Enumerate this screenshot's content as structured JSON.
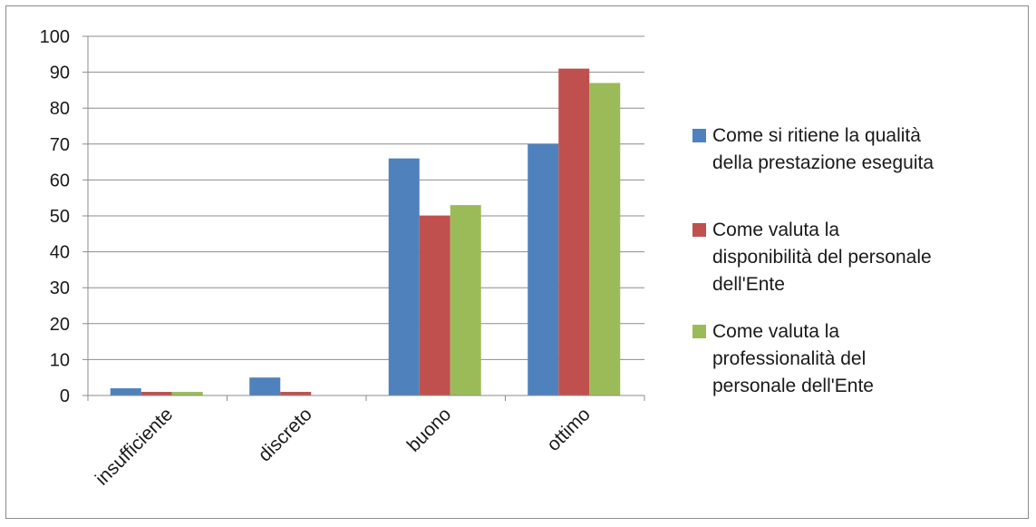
{
  "chart_data": {
    "type": "bar",
    "title": "",
    "xlabel": "",
    "ylabel": "",
    "categories": [
      "insufficiente",
      "discreto",
      "buono",
      "ottimo"
    ],
    "yticks": [
      "0",
      "10",
      "20",
      "30",
      "40",
      "50",
      "60",
      "70",
      "80",
      "90",
      "100"
    ],
    "ylim": [
      0,
      100
    ],
    "grid": true,
    "legend_position": "right",
    "series": [
      {
        "name": "Come si ritiene la qualità della prestazione eseguita",
        "name_lines": [
          "Come si ritiene la qualità",
          "della prestazione eseguita"
        ],
        "color": "#4f81bd",
        "values": [
          2,
          5,
          66,
          70
        ]
      },
      {
        "name": "Come valuta la disponibilità del personale dell'Ente",
        "name_lines": [
          "Come valuta la",
          "disponibilità del personale",
          "dell'Ente"
        ],
        "color": "#c0504d",
        "values": [
          1,
          1,
          50,
          91
        ]
      },
      {
        "name": "Come valuta la professionalità del personale dell'Ente",
        "name_lines": [
          "Come valuta la",
          "professionalità del",
          "personale dell'Ente"
        ],
        "color": "#9bbb59",
        "values": [
          1,
          0,
          53,
          87
        ]
      }
    ]
  }
}
